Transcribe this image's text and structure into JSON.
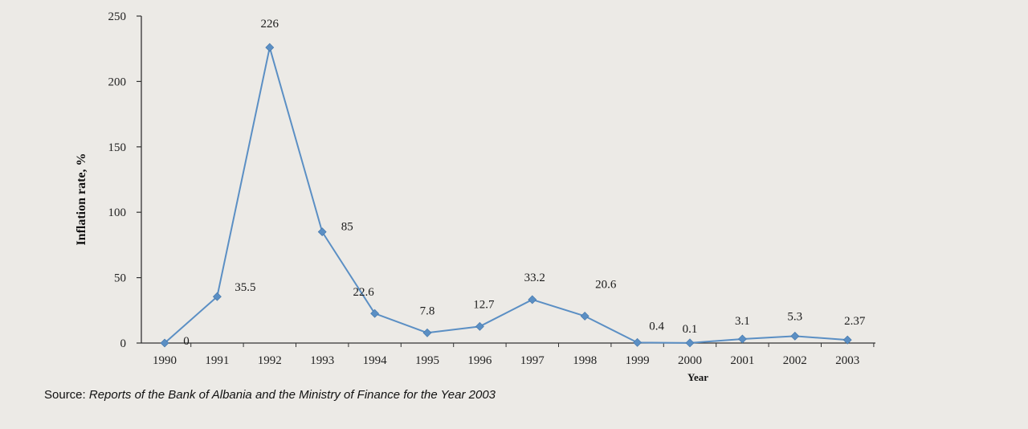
{
  "chart_data": {
    "type": "line",
    "title": "",
    "xlabel": "Year",
    "ylabel": "Inflation rate, %",
    "ylim": [
      0,
      250
    ],
    "yticks": [
      0,
      50,
      100,
      150,
      200,
      250
    ],
    "categories": [
      "1990",
      "1991",
      "1992",
      "1993",
      "1994",
      "1995",
      "1996",
      "1997",
      "1998",
      "1999",
      "2000",
      "2001",
      "2002",
      "2003"
    ],
    "values": [
      0,
      35.5,
      226,
      85,
      22.6,
      7.8,
      12.7,
      33.2,
      20.6,
      0.4,
      0.1,
      3.1,
      5.3,
      2.37
    ],
    "data_labels": [
      "0",
      "35.5",
      "226",
      "85",
      "22.6",
      "7.8",
      "12.7",
      "33.2",
      "20.6",
      "0.4",
      "0.1",
      "3.1",
      "5.3",
      "2.37"
    ],
    "line_color": "#5b8fc4",
    "marker": "diamond",
    "grid": false,
    "legend": "none"
  },
  "source": {
    "prefix": "Source: ",
    "text": "Reports of the Bank of Albania and the Ministry of Finance for the Year 2003"
  }
}
